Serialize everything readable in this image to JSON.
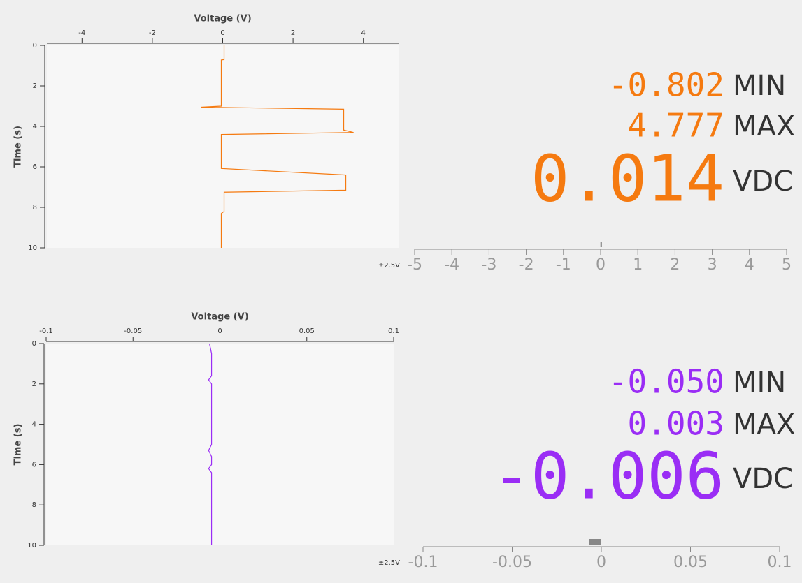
{
  "chart_data": [
    {
      "type": "line",
      "voltage_label": "Voltage (V)",
      "time_label": "Time (s)",
      "voltage_lim": [
        -5,
        5
      ],
      "voltage_ticks": [
        -4,
        -2,
        0,
        2,
        4
      ],
      "time_lim": [
        0,
        10
      ],
      "time_ticks": [
        0,
        2,
        4,
        6,
        8,
        10
      ],
      "time": [
        0,
        0.7,
        0.72,
        3.0,
        3.05,
        3.15,
        4.18,
        4.3,
        4.4,
        6.08,
        6.4,
        7.15,
        7.25,
        8.2,
        8.3,
        10
      ],
      "series": [
        {
          "color": "#f57a10",
          "values": [
            0.04,
            0.04,
            -0.04,
            -0.04,
            -0.62,
            3.44,
            3.44,
            3.72,
            -0.04,
            -0.04,
            3.5,
            3.5,
            0.04,
            0.04,
            -0.04,
            -0.04
          ]
        }
      ]
    },
    {
      "type": "line",
      "voltage_label": "Voltage (V)",
      "time_label": "Time (s)",
      "voltage_lim": [
        -0.1,
        0.1
      ],
      "voltage_ticks": [
        -0.1,
        -0.05,
        0,
        0.05,
        0.1
      ],
      "time_lim": [
        0,
        10
      ],
      "time_ticks": [
        0,
        2,
        4,
        6,
        8,
        10
      ],
      "time": [
        0,
        0.5,
        1.6,
        1.8,
        2.0,
        5.0,
        5.3,
        5.6,
        6.0,
        6.2,
        6.4,
        10
      ],
      "series": [
        {
          "color": "#9a2df5",
          "values": [
            -0.006,
            -0.0048,
            -0.0048,
            -0.0065,
            -0.0048,
            -0.0048,
            -0.0065,
            -0.0048,
            -0.0048,
            -0.0065,
            -0.0048,
            -0.0048
          ]
        }
      ]
    }
  ],
  "readouts": [
    {
      "color": "#f57a10",
      "min": -0.802,
      "min_label": "MIN",
      "max": 4.777,
      "max_label": "MAX",
      "value": 0.014,
      "unit": "VDC",
      "range_label": "±2.5V",
      "gauge_lim": [
        -5,
        5
      ],
      "gauge_ticks": [
        -5,
        -4,
        -3,
        -2,
        -1,
        0,
        1,
        2,
        3,
        4,
        5
      ]
    },
    {
      "color": "#9a2df5",
      "min": {
        "value": -0.05,
        "label": "-0.050"
      },
      "min_label": "MIN",
      "max": 0.003,
      "max_label": "MAX",
      "value": -0.006,
      "unit": "VDC",
      "range_label": "±2.5V",
      "gauge_lim": [
        -0.1,
        0.1
      ],
      "gauge_ticks": [
        -0.1,
        -0.05,
        0,
        0.05,
        0.1
      ]
    }
  ]
}
